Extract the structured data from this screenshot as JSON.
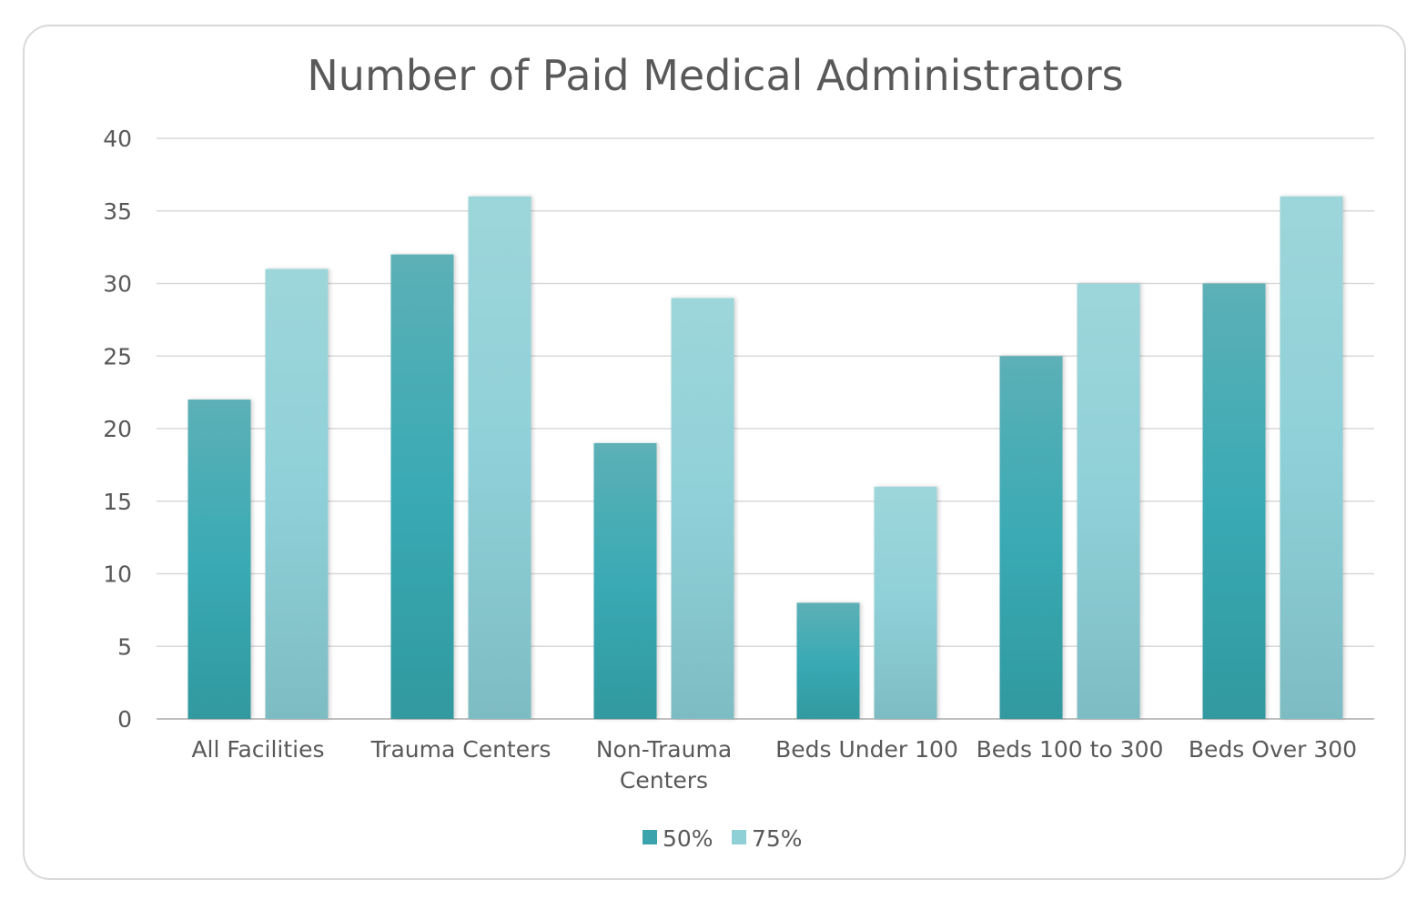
{
  "chart_data": {
    "type": "bar",
    "title": "Number of Paid Medical Administrators",
    "categories": [
      "All Facilities",
      "Trauma Centers",
      "Non-Trauma Centers",
      "Beds Under 100",
      "Beds 100 to 300",
      "Beds Over 300"
    ],
    "series": [
      {
        "name": "50%",
        "values": [
          22,
          32,
          19,
          8,
          25,
          30
        ],
        "color": "#3aa3ab"
      },
      {
        "name": "75%",
        "values": [
          31,
          36,
          29,
          16,
          30,
          36
        ],
        "color": "#8fd0d6"
      }
    ],
    "ylim": [
      0,
      40
    ],
    "yticks": [
      "0",
      "5",
      "10",
      "15",
      "20",
      "25",
      "30",
      "35",
      "40"
    ],
    "grid": true,
    "legend": "bottom"
  }
}
